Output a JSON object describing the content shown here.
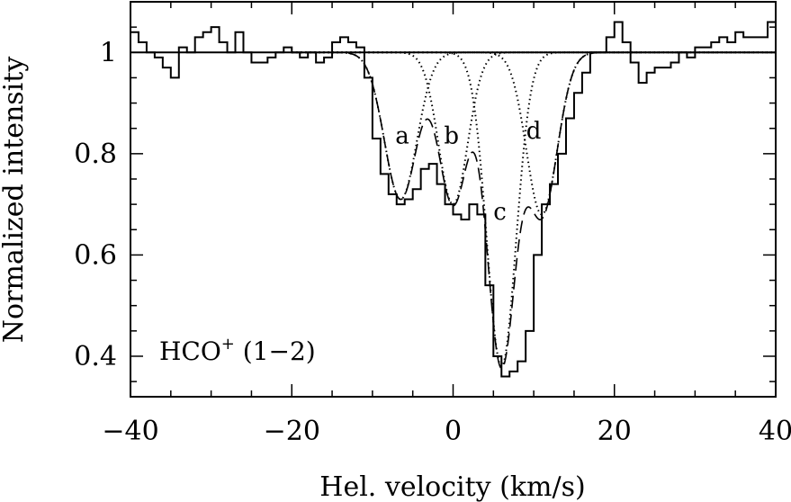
{
  "chart_data": {
    "type": "line",
    "title": "",
    "xlabel": "Hel. velocity (km/s)",
    "ylabel": "Normalized intensity",
    "xlim": [
      -40,
      40
    ],
    "ylim": [
      0.32,
      1.1
    ],
    "x_ticks": [
      -40,
      -20,
      0,
      20,
      40
    ],
    "x_tick_labels": [
      "−40",
      "−20",
      "0",
      "20",
      "40"
    ],
    "y_ticks": [
      0.4,
      0.6,
      0.8,
      1.0
    ],
    "y_tick_labels": [
      "0.4",
      "0.6",
      "0.8",
      "1"
    ],
    "grid": false,
    "annotation": {
      "molecule": "HCO",
      "charge": "+",
      "transition": " (1−2)"
    },
    "series": [
      {
        "role": "spectrum-histogram",
        "style": "solid-step",
        "x": [
          -40,
          -39,
          -38,
          -37,
          -36,
          -35,
          -34,
          -33,
          -32,
          -31,
          -30,
          -29,
          -28,
          -27,
          -26,
          -25,
          -24,
          -23,
          -22,
          -21,
          -20,
          -19,
          -18,
          -17,
          -16,
          -15,
          -14,
          -13,
          -12,
          -11,
          -10,
          -9,
          -8,
          -7,
          -6,
          -5,
          -4,
          -3,
          -2,
          -1,
          0,
          1,
          2,
          3,
          4,
          5,
          6,
          7,
          8,
          9,
          10,
          11,
          12,
          13,
          14,
          15,
          16,
          17,
          18,
          19,
          20,
          21,
          22,
          23,
          24,
          25,
          26,
          27,
          28,
          29,
          30,
          31,
          32,
          33,
          34,
          35,
          36,
          37,
          38,
          39
        ],
        "y": [
          1.04,
          1.02,
          1.0,
          0.99,
          0.97,
          0.95,
          1.01,
          1.0,
          1.03,
          1.04,
          1.05,
          1.02,
          1.0,
          1.04,
          1.0,
          0.98,
          0.98,
          0.99,
          1.0,
          1.01,
          1.0,
          0.99,
          1.0,
          0.98,
          0.99,
          1.02,
          1.03,
          1.02,
          1.01,
          0.95,
          0.83,
          0.76,
          0.72,
          0.7,
          0.71,
          0.73,
          0.77,
          0.78,
          0.74,
          0.7,
          0.68,
          0.67,
          0.7,
          0.68,
          0.54,
          0.4,
          0.36,
          0.37,
          0.39,
          0.45,
          0.6,
          0.7,
          0.74,
          0.8,
          0.87,
          0.92,
          0.96,
          1.0,
          1.0,
          1.03,
          1.06,
          1.02,
          0.98,
          0.94,
          0.96,
          0.97,
          0.97,
          0.98,
          1.0,
          0.99,
          1.01,
          1.01,
          1.02,
          1.03,
          1.02,
          1.04,
          1.03,
          1.03,
          1.03,
          1.06
        ]
      },
      {
        "role": "total-fit",
        "style": "dashed",
        "continuum": 1.0,
        "components": [
          "a",
          "b",
          "c",
          "d"
        ]
      }
    ],
    "components": [
      {
        "name": "a",
        "center": -6.5,
        "depth": 0.29,
        "sigma": 2.0
      },
      {
        "name": "b",
        "center": 0.0,
        "depth": 0.3,
        "sigma": 1.8
      },
      {
        "name": "c",
        "center": 6.0,
        "depth": 0.62,
        "sigma": 1.8
      },
      {
        "name": "d",
        "center": 11.0,
        "depth": 0.32,
        "sigma": 1.9
      }
    ],
    "component_labels": [
      {
        "text": "a",
        "x": -6.3,
        "y": 0.82
      },
      {
        "text": "b",
        "x": -0.2,
        "y": 0.82
      },
      {
        "text": "c",
        "x": 5.8,
        "y": 0.67
      },
      {
        "text": "d",
        "x": 10.0,
        "y": 0.83
      }
    ]
  }
}
